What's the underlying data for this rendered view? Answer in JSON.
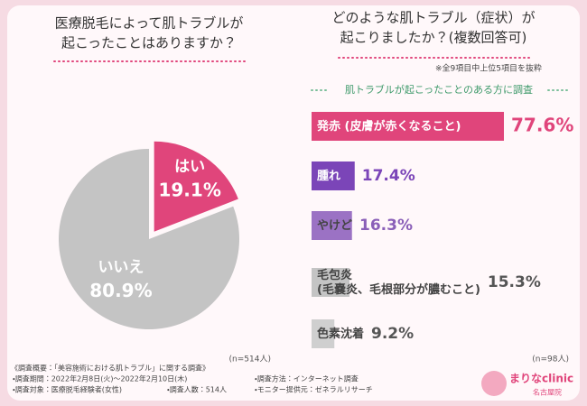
{
  "chart_data": [
    {
      "type": "pie",
      "title": [
        "医療脱毛によって肌トラブルが",
        "起こったことはありますか？"
      ],
      "categories": [
        "はい",
        "いいえ"
      ],
      "values": [
        19.1,
        80.9
      ],
      "value_labels": [
        "19.1%",
        "80.9%"
      ],
      "colors": [
        "#e0457b",
        "#c4c4c4"
      ],
      "note": "(n=514人)"
    },
    {
      "type": "hbar",
      "title": [
        "どのような肌トラブル（症状）が",
        "起こりましたか？(複数回答可)"
      ],
      "subtitle": "※全9項目中上位5項目を抜粋",
      "header": "肌トラブルが起こったことのある方に調査",
      "categories": [
        [
          "発赤 (皮膚が赤くなること)"
        ],
        [
          "腫れ"
        ],
        [
          "やけど"
        ],
        [
          "毛包炎",
          "(毛嚢炎、毛根部分が膿むこと)"
        ],
        [
          "色素沈着"
        ]
      ],
      "values": [
        77.6,
        17.4,
        16.3,
        15.3,
        9.2
      ],
      "value_labels": [
        "77.6%",
        "17.4%",
        "16.3%",
        "15.3%",
        "9.2%"
      ],
      "colors": [
        "#e0457b",
        "#7b45b8",
        "#9b72c4",
        "#c4c4c4",
        "#cfcfcf"
      ],
      "label_colors": [
        "#e0457b",
        "#7b45b8",
        "#8a5fb8",
        "#555555",
        "#555555"
      ],
      "note": "(n=98人)"
    }
  ],
  "footer": {
    "heading": "《調査概要：「美容施術における肌トラブル」に関する調査》",
    "items": [
      "・調査期間：2022年2月8日(火)〜2022年2月10日(木)",
      "・調査方法：インターネット調査",
      "・調査対象：医療脱毛経験者(女性)",
      "・調査人数：514人",
      "・モニター提供元：ゼネラルリサーチ"
    ]
  },
  "logo": {
    "name": "まりなclinic",
    "branch": "名古屋院"
  }
}
